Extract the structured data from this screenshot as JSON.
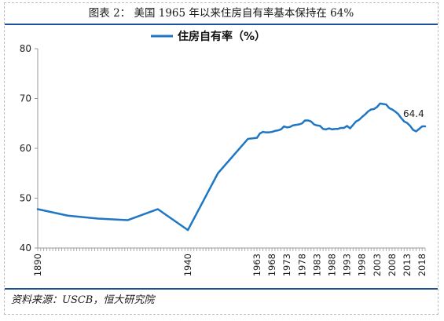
{
  "figure": {
    "title": "图表 2： 美国 1965 年以来住房自有率基本保持在 64%",
    "source": "资料来源：USCB，恒大研究院"
  },
  "colors": {
    "series": "#1f77c4",
    "rule": "#1f4e9a",
    "axis": "#999999"
  },
  "chart_data": {
    "type": "line",
    "title": "",
    "xlabel": "",
    "ylabel": "",
    "xlim": [
      1890,
      2019
    ],
    "ylim": [
      40,
      80
    ],
    "yticks": [
      40,
      50,
      60,
      70,
      80
    ],
    "xticks": [
      "1890",
      "1940",
      "1963",
      "1968",
      "1973",
      "1978",
      "1983",
      "1988",
      "1993",
      "1998",
      "2003",
      "2008",
      "2013",
      "2018"
    ],
    "grid": false,
    "legend": "top-center",
    "annotations": [
      {
        "text": "64.4",
        "x": 2019,
        "y": 64.4
      }
    ],
    "series": [
      {
        "name": "住房自有率（%）",
        "x": [
          1890,
          1900,
          1910,
          1920,
          1930,
          1940,
          1950,
          1960,
          1963,
          1964,
          1965,
          1966,
          1967,
          1968,
          1969,
          1970,
          1971,
          1972,
          1973,
          1974,
          1975,
          1976,
          1977,
          1978,
          1979,
          1980,
          1981,
          1982,
          1983,
          1984,
          1985,
          1986,
          1987,
          1988,
          1989,
          1990,
          1991,
          1992,
          1993,
          1994,
          1995,
          1996,
          1997,
          1998,
          1999,
          2000,
          2001,
          2002,
          2003,
          2004,
          2005,
          2006,
          2007,
          2008,
          2009,
          2010,
          2011,
          2012,
          2013,
          2014,
          2015,
          2016,
          2017,
          2018,
          2019
        ],
        "values": [
          47.8,
          46.5,
          45.9,
          45.6,
          47.8,
          43.6,
          55.0,
          61.9,
          62.1,
          63.0,
          63.3,
          63.2,
          63.2,
          63.3,
          63.5,
          63.6,
          63.8,
          64.4,
          64.2,
          64.3,
          64.6,
          64.7,
          64.8,
          65.0,
          65.6,
          65.6,
          65.4,
          64.8,
          64.6,
          64.5,
          63.9,
          63.8,
          64.0,
          63.8,
          63.9,
          63.9,
          64.1,
          64.1,
          64.5,
          64.0,
          64.7,
          65.4,
          65.7,
          66.3,
          66.8,
          67.4,
          67.8,
          67.9,
          68.3,
          69.0,
          68.9,
          68.8,
          68.1,
          67.8,
          67.4,
          66.9,
          66.1,
          65.4,
          65.1,
          64.5,
          63.7,
          63.4,
          63.9,
          64.4,
          64.4
        ]
      }
    ]
  }
}
